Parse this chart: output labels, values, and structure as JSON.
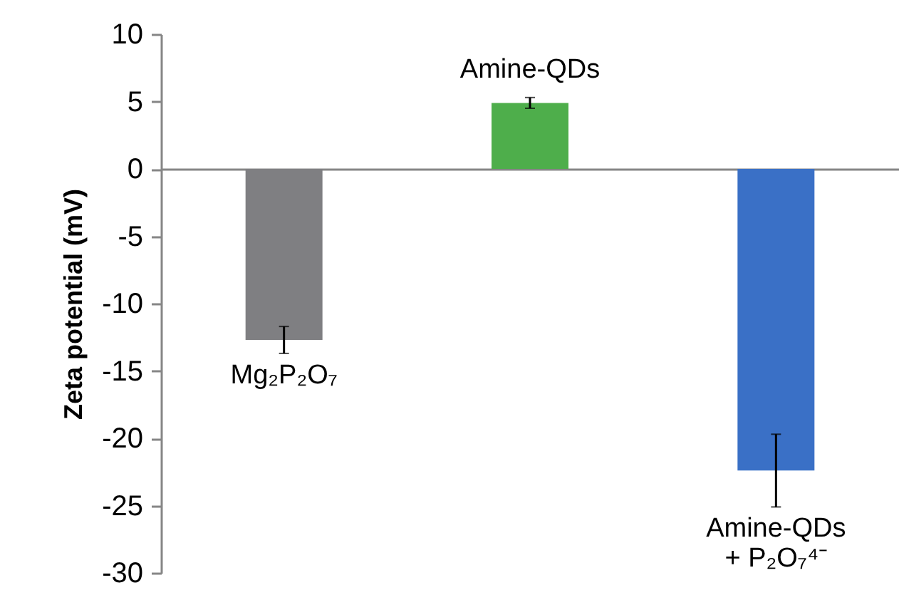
{
  "chart_data": {
    "type": "bar",
    "ylabel": "Zeta potential (mV)",
    "categories": [
      "Mg₂P₂O₇",
      "Amine-QDs",
      "Amine-QDs\n+ P₂O₇⁴⁻"
    ],
    "values": [
      -12.7,
      4.9,
      -22.4
    ],
    "errors": [
      1.0,
      0.4,
      2.7
    ],
    "colors": [
      "#7f7f82",
      "#4eae4b",
      "#3a70c6"
    ],
    "ylim": [
      -30,
      10
    ],
    "yticks": [
      -30,
      -25,
      -20,
      -15,
      -10,
      -5,
      0,
      5,
      10
    ],
    "tick_labels": "y",
    "legend": false
  }
}
